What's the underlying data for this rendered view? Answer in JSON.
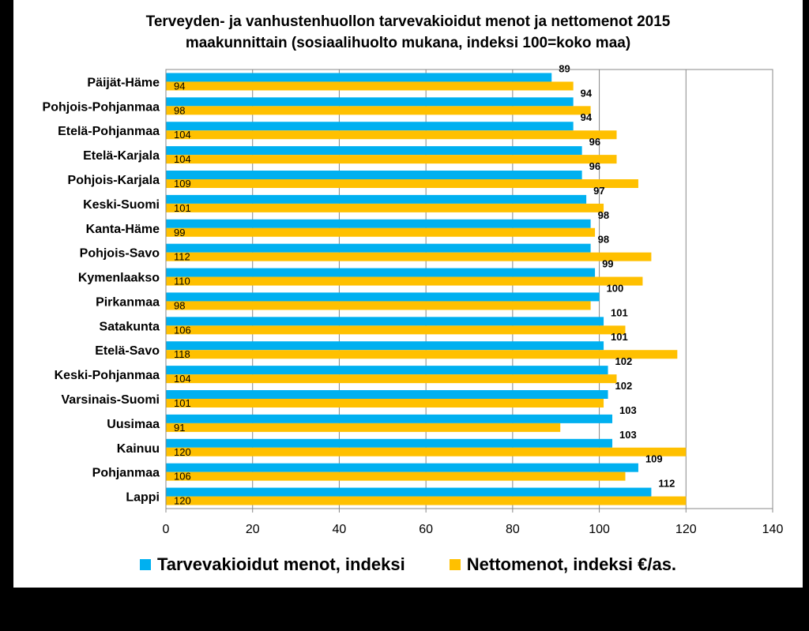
{
  "chart_data": {
    "type": "bar",
    "orientation": "horizontal",
    "title": [
      "Terveyden- ja vanhustenhuollon tarvevakioidut menot ja nettomenot 2015",
      "maakunnittain (sosiaalihuolto mukana, indeksi 100=koko maa)"
    ],
    "categories": [
      "Päijät-Häme",
      "Pohjois-Pohjanmaa",
      "Etelä-Pohjanmaa",
      "Etelä-Karjala",
      "Pohjois-Karjala",
      "Keski-Suomi",
      "Kanta-Häme",
      "Pohjois-Savo",
      "Kymenlaakso",
      "Pirkanmaa",
      "Satakunta",
      "Etelä-Savo",
      "Keski-Pohjanmaa",
      "Varsinais-Suomi",
      "Uusimaa",
      "Kainuu",
      "Pohjanmaa",
      "Lappi"
    ],
    "series": [
      {
        "name": "Tarvevakioidut menot, indeksi",
        "color": "#00b0f0",
        "values": [
          89,
          94,
          94,
          96,
          96,
          97,
          98,
          98,
          99,
          100,
          101,
          101,
          102,
          102,
          103,
          103,
          109,
          112
        ]
      },
      {
        "name": "Nettomenot, indeksi €/as.",
        "color": "#ffc000",
        "values": [
          94,
          98,
          104,
          104,
          109,
          101,
          99,
          112,
          110,
          98,
          106,
          118,
          104,
          101,
          91,
          120,
          106,
          120
        ]
      }
    ],
    "xlim": [
      0,
      140
    ],
    "xticks": [
      "0",
      "20",
      "40",
      "60",
      "80",
      "100",
      "120",
      "140"
    ],
    "grid": true,
    "legend_position": "bottom"
  }
}
